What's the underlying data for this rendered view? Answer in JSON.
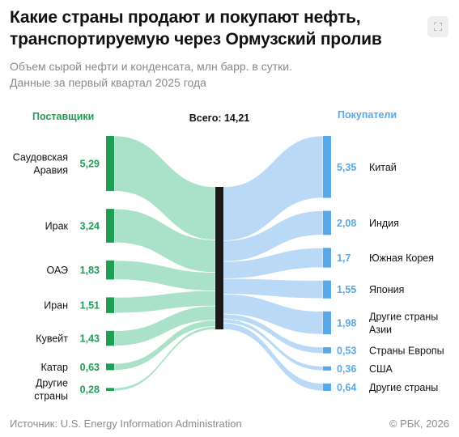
{
  "header": {
    "title_line1": "Какие страны продают и покупают нефть,",
    "title_line2": "транспортируемую через Ормузский пролив",
    "subtitle_line1": "Объем сырой нефти и конденсата, млн барр. в сутки.",
    "subtitle_line2": "Данные за первый квартал 2025 года"
  },
  "footer": {
    "source": "Источник: U.S. Energy Information Administration",
    "copyright": "© РБК, 2026"
  },
  "icons": {
    "expand": "expand-icon"
  },
  "colors": {
    "suppliers": "#1f9d55",
    "suppliers_flow": "#a9e2c9",
    "buyers": "#5aa9e6",
    "buyers_flow": "#b9d9f7",
    "center": "#1a1a1a"
  },
  "chart_data": {
    "type": "sankey",
    "total_label": "Всего: 14,21",
    "total": 14.21,
    "suppliers_label": "Поставщики",
    "buyers_label": "Покупатели",
    "sources": [
      {
        "name": [
          "Саудовская",
          "Аравия"
        ],
        "value": 5.29,
        "value_label": "5,29"
      },
      {
        "name": [
          "Ирак"
        ],
        "value": 3.24,
        "value_label": "3,24"
      },
      {
        "name": [
          "ОАЭ"
        ],
        "value": 1.83,
        "value_label": "1,83"
      },
      {
        "name": [
          "Иран"
        ],
        "value": 1.51,
        "value_label": "1,51"
      },
      {
        "name": [
          "Кувейт"
        ],
        "value": 1.43,
        "value_label": "1,43"
      },
      {
        "name": [
          "Катар"
        ],
        "value": 0.63,
        "value_label": "0,63"
      },
      {
        "name": [
          "Другие",
          "страны"
        ],
        "value": 0.28,
        "value_label": "0,28"
      }
    ],
    "targets": [
      {
        "name": [
          "Китай"
        ],
        "value": 5.35,
        "value_label": "5,35"
      },
      {
        "name": [
          "Индия"
        ],
        "value": 2.08,
        "value_label": "2,08"
      },
      {
        "name": [
          "Южная Корея"
        ],
        "value": 1.7,
        "value_label": "1,7"
      },
      {
        "name": [
          "Япония"
        ],
        "value": 1.55,
        "value_label": "1,55"
      },
      {
        "name": [
          "Другие страны",
          "Азии"
        ],
        "value": 1.98,
        "value_label": "1,98"
      },
      {
        "name": [
          "Страны Европы"
        ],
        "value": 0.53,
        "value_label": "0,53"
      },
      {
        "name": [
          "США"
        ],
        "value": 0.36,
        "value_label": "0,36"
      },
      {
        "name": [
          "Другие страны"
        ],
        "value": 0.64,
        "value_label": "0,64"
      }
    ]
  }
}
